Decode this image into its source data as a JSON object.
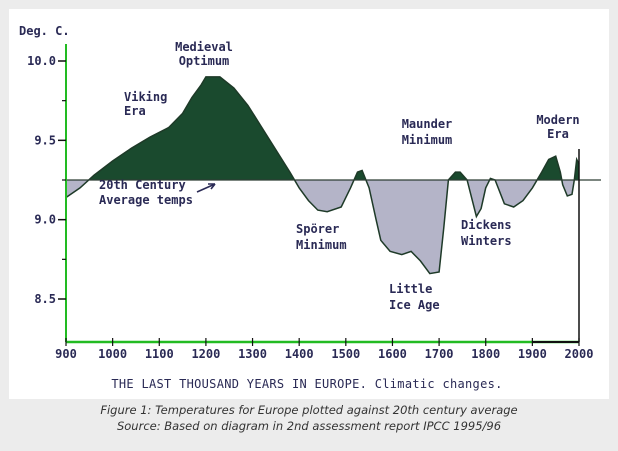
{
  "chart_data": {
    "type": "area",
    "title": "",
    "ylabel": "Deg. C.",
    "xlabel": "THE LAST THOUSAND YEARS IN EUROPE. Climatic changes.",
    "xlim": [
      900,
      2000
    ],
    "ylim": [
      8.25,
      10.1
    ],
    "x_ticks": [
      900,
      1000,
      1100,
      1200,
      1300,
      1400,
      1500,
      1600,
      1700,
      1800,
      1900,
      2000
    ],
    "y_ticks": [
      8.5,
      9.0,
      9.5,
      10.0
    ],
    "y_tick_labels": [
      "8.5",
      "9.0",
      "9.5",
      "10.0"
    ],
    "baseline": 9.25,
    "baseline_label": "20th Century Average temps",
    "series": [
      {
        "x": [
          900,
          930,
          960,
          1000,
          1040,
          1080,
          1120,
          1150,
          1170,
          1190,
          1200,
          1230,
          1260,
          1290,
          1320,
          1350,
          1380,
          1400,
          1420,
          1440,
          1460,
          1490,
          1510,
          1525,
          1535,
          1550,
          1565,
          1575,
          1595,
          1620,
          1640,
          1660,
          1680,
          1700,
          1710,
          1720,
          1735,
          1745,
          1760,
          1780,
          1790,
          1800,
          1810,
          1820,
          1840,
          1860,
          1880,
          1900,
          1920,
          1935,
          1950,
          1960,
          1965,
          1975,
          1985,
          1990,
          1995,
          2000
        ],
        "y": [
          9.14,
          9.2,
          9.28,
          9.37,
          9.45,
          9.52,
          9.58,
          9.67,
          9.77,
          9.85,
          9.9,
          9.9,
          9.83,
          9.72,
          9.58,
          9.44,
          9.3,
          9.2,
          9.12,
          9.06,
          9.05,
          9.08,
          9.2,
          9.3,
          9.31,
          9.2,
          9.0,
          8.87,
          8.8,
          8.78,
          8.8,
          8.74,
          8.66,
          8.67,
          8.95,
          9.25,
          9.3,
          9.3,
          9.25,
          9.02,
          9.07,
          9.2,
          9.26,
          9.25,
          9.1,
          9.08,
          9.12,
          9.2,
          9.3,
          9.38,
          9.4,
          9.3,
          9.22,
          9.15,
          9.16,
          9.25,
          9.38,
          9.35
        ]
      }
    ],
    "annotations": [
      {
        "text": "Viking Era",
        "x": 1130,
        "y": 9.72
      },
      {
        "text": "Medieval Optimum",
        "x": 1200,
        "y": 10.02
      },
      {
        "text": "Spörer Minimum",
        "x": 1420,
        "y": 8.88
      },
      {
        "text": "Maunder Minimum",
        "x": 1660,
        "y": 9.55
      },
      {
        "text": "Little Ice Age",
        "x": 1600,
        "y": 8.55
      },
      {
        "text": "Dickens Winters",
        "x": 1800,
        "y": 8.92
      },
      {
        "text": "Modern Era",
        "x": 1950,
        "y": 9.6
      }
    ],
    "above_color": "#1a4a2e",
    "below_color": "#b4b4c8",
    "axis_color": "#22bb22"
  },
  "figure_caption": {
    "line1": "Figure 1: Temperatures for Europe plotted against 20th century average",
    "line2": "Source: Based on diagram in 2nd assessment report IPCC 1995/96"
  }
}
